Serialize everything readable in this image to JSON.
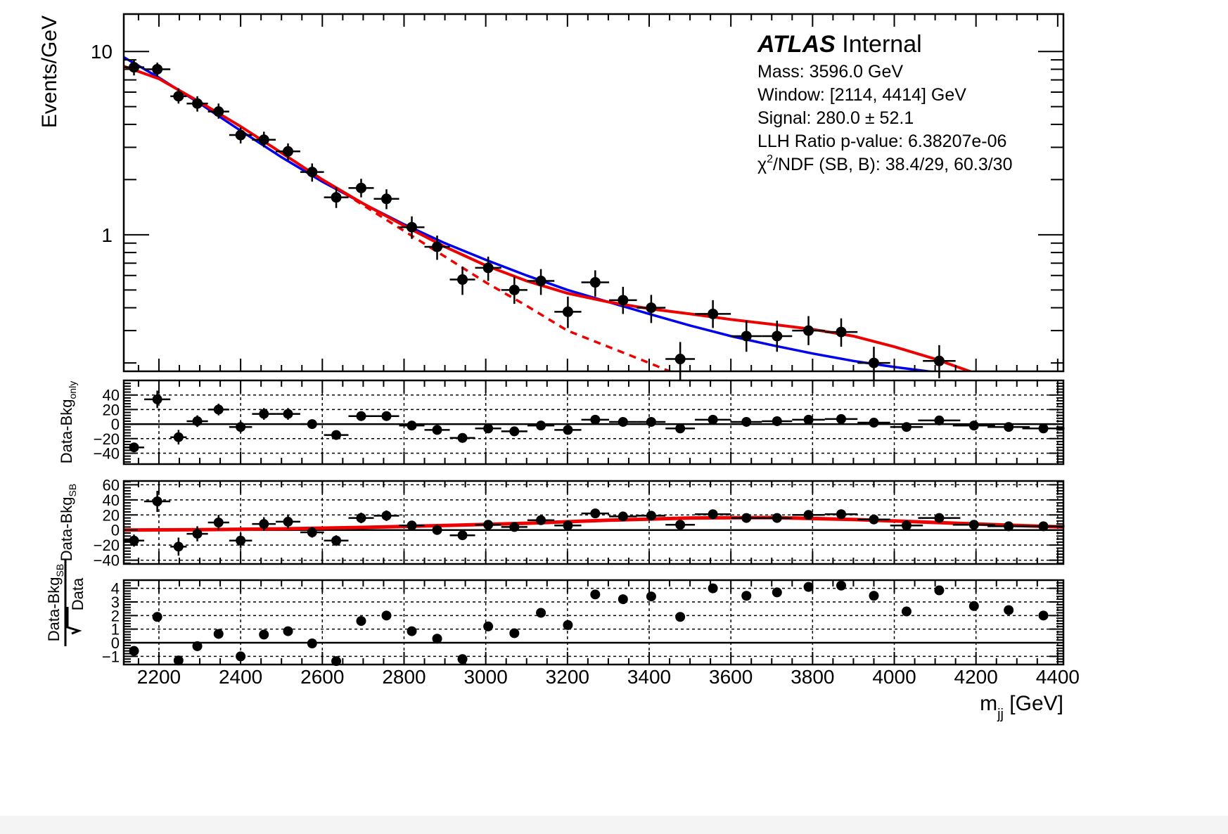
{
  "chart_data": {
    "type": "scatter",
    "xlabel": "m",
    "xlabel_sub": "jj",
    "xlabel_unit": " [GeV]",
    "xlim": [
      2114,
      4414
    ],
    "x_ticks": [
      2200,
      2400,
      2600,
      2800,
      3000,
      3200,
      3400,
      3600,
      3800,
      4000,
      4200,
      4400
    ],
    "colors": {
      "sb_fit": "#ee0000",
      "bkg_fit": "#0000ee",
      "data": "#000000"
    },
    "main": {
      "ylabel": "Events/GeV",
      "yscale": "log",
      "ylim": [
        0.18,
        16
      ],
      "y_tick_labels": [
        {
          "v": 10,
          "t": "10"
        },
        {
          "v": 1,
          "t": "1"
        }
      ],
      "legend": {
        "experiment": "ATLAS",
        "status": " Internal",
        "lines": [
          "Mass: 3596.0 GeV",
          "Window: [2114, 4414] GeV",
          "Signal: 280.0 ± 52.1",
          "LLH Ratio p-value: 6.38207e-06"
        ],
        "chi2_symbol": "χ",
        "chi2_sup": "2",
        "chi2_rest": "/NDF (SB, B): 38.4/29, 60.3/30",
        "placement": "top-right"
      },
      "data": [
        {
          "lo": 2114,
          "hi": 2164,
          "y": 8.2,
          "yl": 7.4,
          "yh": 9.0
        },
        {
          "lo": 2164,
          "hi": 2228,
          "y": 8.0,
          "yl": 7.3,
          "yh": 8.7
        },
        {
          "lo": 2228,
          "hi": 2268,
          "y": 5.7,
          "yl": 5.2,
          "yh": 6.3
        },
        {
          "lo": 2268,
          "hi": 2320,
          "y": 5.2,
          "yl": 4.7,
          "yh": 5.7
        },
        {
          "lo": 2320,
          "hi": 2372,
          "y": 4.7,
          "yl": 4.3,
          "yh": 5.2
        },
        {
          "lo": 2372,
          "hi": 2428,
          "y": 3.5,
          "yl": 3.15,
          "yh": 3.85
        },
        {
          "lo": 2428,
          "hi": 2486,
          "y": 3.3,
          "yl": 3.0,
          "yh": 3.65
        },
        {
          "lo": 2486,
          "hi": 2546,
          "y": 2.85,
          "yl": 2.55,
          "yh": 3.15
        },
        {
          "lo": 2546,
          "hi": 2604,
          "y": 2.2,
          "yl": 1.95,
          "yh": 2.45
        },
        {
          "lo": 2604,
          "hi": 2664,
          "y": 1.6,
          "yl": 1.4,
          "yh": 1.82
        },
        {
          "lo": 2664,
          "hi": 2726,
          "y": 1.8,
          "yl": 1.6,
          "yh": 2.02
        },
        {
          "lo": 2726,
          "hi": 2788,
          "y": 1.57,
          "yl": 1.38,
          "yh": 1.77
        },
        {
          "lo": 2788,
          "hi": 2850,
          "y": 1.1,
          "yl": 0.95,
          "yh": 1.26
        },
        {
          "lo": 2850,
          "hi": 2912,
          "y": 0.86,
          "yl": 0.73,
          "yh": 0.99
        },
        {
          "lo": 2912,
          "hi": 2974,
          "y": 0.57,
          "yl": 0.47,
          "yh": 0.67
        },
        {
          "lo": 2974,
          "hi": 3038,
          "y": 0.66,
          "yl": 0.56,
          "yh": 0.76
        },
        {
          "lo": 3038,
          "hi": 3102,
          "y": 0.5,
          "yl": 0.42,
          "yh": 0.59
        },
        {
          "lo": 3102,
          "hi": 3168,
          "y": 0.56,
          "yl": 0.47,
          "yh": 0.65
        },
        {
          "lo": 3168,
          "hi": 3234,
          "y": 0.38,
          "yl": 0.31,
          "yh": 0.46
        },
        {
          "lo": 3234,
          "hi": 3302,
          "y": 0.55,
          "yl": 0.46,
          "yh": 0.64
        },
        {
          "lo": 3302,
          "hi": 3370,
          "y": 0.44,
          "yl": 0.37,
          "yh": 0.52
        },
        {
          "lo": 3370,
          "hi": 3440,
          "y": 0.4,
          "yl": 0.33,
          "yh": 0.47
        },
        {
          "lo": 3440,
          "hi": 3512,
          "y": 0.21,
          "yl": 0.16,
          "yh": 0.26
        },
        {
          "lo": 3512,
          "hi": 3600,
          "y": 0.37,
          "yl": 0.31,
          "yh": 0.44
        },
        {
          "lo": 3600,
          "hi": 3676,
          "y": 0.28,
          "yl": 0.23,
          "yh": 0.34
        },
        {
          "lo": 3676,
          "hi": 3750,
          "y": 0.28,
          "yl": 0.23,
          "yh": 0.34
        },
        {
          "lo": 3750,
          "hi": 3830,
          "y": 0.3,
          "yl": 0.25,
          "yh": 0.36
        },
        {
          "lo": 3830,
          "hi": 3910,
          "y": 0.295,
          "yl": 0.245,
          "yh": 0.35
        },
        {
          "lo": 3910,
          "hi": 3990,
          "y": 0.2,
          "yl": 0.16,
          "yh": 0.245
        },
        {
          "lo": 4070,
          "hi": 4150,
          "y": 0.205,
          "yl": 0.165,
          "yh": 0.25
        }
      ],
      "sb_fit": [
        [
          2114,
          8.3
        ],
        [
          2200,
          7.1
        ],
        [
          2300,
          5.3
        ],
        [
          2400,
          3.9
        ],
        [
          2500,
          2.8
        ],
        [
          2600,
          2.0
        ],
        [
          2700,
          1.48
        ],
        [
          2800,
          1.12
        ],
        [
          2900,
          0.86
        ],
        [
          3000,
          0.68
        ],
        [
          3100,
          0.56
        ],
        [
          3200,
          0.48
        ],
        [
          3300,
          0.43
        ],
        [
          3400,
          0.395
        ],
        [
          3500,
          0.37
        ],
        [
          3600,
          0.345
        ],
        [
          3700,
          0.325
        ],
        [
          3800,
          0.305
        ],
        [
          3900,
          0.28
        ],
        [
          4000,
          0.245
        ],
        [
          4100,
          0.21
        ],
        [
          4200,
          0.175
        ],
        [
          4300,
          0.148
        ]
      ],
      "bkg_fit": [
        [
          2114,
          9.3
        ],
        [
          2200,
          7.2
        ],
        [
          2300,
          5.2
        ],
        [
          2400,
          3.7
        ],
        [
          2500,
          2.65
        ],
        [
          2600,
          1.95
        ],
        [
          2700,
          1.48
        ],
        [
          2800,
          1.14
        ],
        [
          2900,
          0.9
        ],
        [
          3000,
          0.73
        ],
        [
          3100,
          0.6
        ],
        [
          3200,
          0.5
        ],
        [
          3300,
          0.43
        ],
        [
          3400,
          0.37
        ],
        [
          3500,
          0.32
        ],
        [
          3600,
          0.28
        ],
        [
          3700,
          0.25
        ],
        [
          3800,
          0.225
        ],
        [
          3900,
          0.205
        ],
        [
          4000,
          0.19
        ],
        [
          4100,
          0.178
        ],
        [
          4200,
          0.17
        ],
        [
          4300,
          0.163
        ],
        [
          4400,
          0.158
        ]
      ],
      "sb_bkg_component": [
        [
          2600,
          2.0
        ],
        [
          2700,
          1.45
        ],
        [
          2800,
          1.05
        ],
        [
          2900,
          0.76
        ],
        [
          3000,
          0.55
        ],
        [
          3100,
          0.41
        ],
        [
          3200,
          0.3
        ],
        [
          3300,
          0.245
        ],
        [
          3400,
          0.2
        ],
        [
          3460,
          0.176
        ]
      ]
    },
    "panels": [
      {
        "ylabel": "Data-Bkg",
        "ylabel_sub": "only",
        "ylim": [
          -55,
          60
        ],
        "y_ticks": [
          {
            "v": 40,
            "t": "40"
          },
          {
            "v": 20,
            "t": "20"
          },
          {
            "v": 0,
            "t": "0"
          },
          {
            "v": -20,
            "t": "−20"
          },
          {
            "v": -40,
            "t": "−40"
          }
        ],
        "points": [
          [
            2139,
            -32
          ],
          [
            2196,
            34
          ],
          [
            2248,
            -18
          ],
          [
            2294,
            4
          ],
          [
            2346,
            20
          ],
          [
            2400,
            -4
          ],
          [
            2457,
            14
          ],
          [
            2516,
            14
          ],
          [
            2575,
            0
          ],
          [
            2634,
            -15
          ],
          [
            2695,
            11
          ],
          [
            2757,
            11
          ],
          [
            2819,
            -2
          ],
          [
            2881,
            -8
          ],
          [
            2943,
            -19
          ],
          [
            3006,
            -6
          ],
          [
            3070,
            -10
          ],
          [
            3135,
            -2
          ],
          [
            3201,
            -8
          ],
          [
            3268,
            6
          ],
          [
            3336,
            3
          ],
          [
            3405,
            3
          ],
          [
            3476,
            -6
          ],
          [
            3556,
            6
          ],
          [
            3638,
            3
          ],
          [
            3713,
            4
          ],
          [
            3790,
            6
          ],
          [
            3870,
            7
          ],
          [
            3950,
            2
          ],
          [
            4030,
            -4
          ],
          [
            4110,
            5
          ],
          [
            4195,
            -2
          ],
          [
            4280,
            -4
          ],
          [
            4365,
            -6
          ]
        ],
        "err_y": [
          6,
          12,
          10,
          8,
          8,
          8,
          8,
          8,
          6,
          6,
          6,
          6,
          5,
          5,
          4,
          4,
          4,
          4,
          4,
          4,
          4,
          4,
          4,
          4,
          4,
          4,
          4,
          4,
          4,
          4,
          4,
          4,
          3,
          3
        ],
        "curve": null
      },
      {
        "ylabel": "Data-Bkg",
        "ylabel_sub": "SB",
        "ylim": [
          -45,
          65
        ],
        "y_ticks": [
          {
            "v": 60,
            "t": "60"
          },
          {
            "v": 40,
            "t": "40"
          },
          {
            "v": 20,
            "t": "20"
          },
          {
            "v": 0,
            "t": "0"
          },
          {
            "v": -20,
            "t": "−20"
          },
          {
            "v": -40,
            "t": "−40"
          }
        ],
        "points": [
          [
            2139,
            -14
          ],
          [
            2196,
            38
          ],
          [
            2248,
            -22
          ],
          [
            2294,
            -5
          ],
          [
            2346,
            10
          ],
          [
            2400,
            -14
          ],
          [
            2457,
            8
          ],
          [
            2516,
            11
          ],
          [
            2575,
            -3
          ],
          [
            2634,
            -14
          ],
          [
            2695,
            16
          ],
          [
            2757,
            19
          ],
          [
            2819,
            6
          ],
          [
            2881,
            0
          ],
          [
            2943,
            -7
          ],
          [
            3006,
            7
          ],
          [
            3070,
            4
          ],
          [
            3135,
            13
          ],
          [
            3201,
            6
          ],
          [
            3268,
            22
          ],
          [
            3336,
            18
          ],
          [
            3405,
            19
          ],
          [
            3476,
            7
          ],
          [
            3556,
            21
          ],
          [
            3638,
            16
          ],
          [
            3713,
            16
          ],
          [
            3790,
            20
          ],
          [
            3870,
            21
          ],
          [
            3950,
            14
          ],
          [
            4030,
            6
          ],
          [
            4110,
            16
          ],
          [
            4195,
            7
          ],
          [
            4280,
            5
          ],
          [
            4365,
            5
          ]
        ],
        "err_y": [
          8,
          14,
          12,
          10,
          10,
          10,
          9,
          9,
          7,
          7,
          7,
          7,
          6,
          6,
          5,
          5,
          5,
          5,
          5,
          5,
          5,
          5,
          5,
          5,
          5,
          5,
          5,
          5,
          5,
          5,
          5,
          5,
          4,
          4
        ],
        "curve": [
          [
            2114,
            0
          ],
          [
            2300,
            0.5
          ],
          [
            2500,
            1.5
          ],
          [
            2700,
            3.5
          ],
          [
            2900,
            6
          ],
          [
            3100,
            9
          ],
          [
            3300,
            13
          ],
          [
            3500,
            16
          ],
          [
            3700,
            16.5
          ],
          [
            3900,
            14
          ],
          [
            4100,
            10
          ],
          [
            4300,
            6
          ],
          [
            4414,
            4
          ]
        ]
      },
      {
        "ylabel": "Data-Bkg",
        "ylabel_sub": "SB",
        "ylabel_den": "Data",
        "ylim": [
          -1.6,
          4.6
        ],
        "y_ticks": [
          {
            "v": 4,
            "t": "4"
          },
          {
            "v": 3,
            "t": "3"
          },
          {
            "v": 2,
            "t": "2"
          },
          {
            "v": 1,
            "t": "1"
          },
          {
            "v": 0,
            "t": "0"
          },
          {
            "v": -1,
            "t": "−1"
          }
        ],
        "points": [
          [
            2139,
            -0.6
          ],
          [
            2196,
            1.9
          ],
          [
            2248,
            -1.3
          ],
          [
            2294,
            -0.25
          ],
          [
            2346,
            0.65
          ],
          [
            2400,
            -1.0
          ],
          [
            2457,
            0.6
          ],
          [
            2516,
            0.85
          ],
          [
            2575,
            -0.05
          ],
          [
            2634,
            -1.35
          ],
          [
            2695,
            1.6
          ],
          [
            2757,
            2.0
          ],
          [
            2819,
            0.85
          ],
          [
            2881,
            0.3
          ],
          [
            2943,
            -1.2
          ],
          [
            3006,
            1.2
          ],
          [
            3070,
            0.7
          ],
          [
            3135,
            2.2
          ],
          [
            3201,
            1.3
          ],
          [
            3268,
            3.55
          ],
          [
            3336,
            3.2
          ],
          [
            3405,
            3.4
          ],
          [
            3476,
            1.9
          ],
          [
            3556,
            4.0
          ],
          [
            3638,
            3.45
          ],
          [
            3713,
            3.7
          ],
          [
            3790,
            4.1
          ],
          [
            3870,
            4.2
          ],
          [
            3950,
            3.45
          ],
          [
            4030,
            2.3
          ],
          [
            4110,
            3.85
          ],
          [
            4195,
            2.7
          ],
          [
            4280,
            2.4
          ],
          [
            4365,
            2.0
          ]
        ],
        "err_y": null,
        "curve": null
      }
    ]
  }
}
